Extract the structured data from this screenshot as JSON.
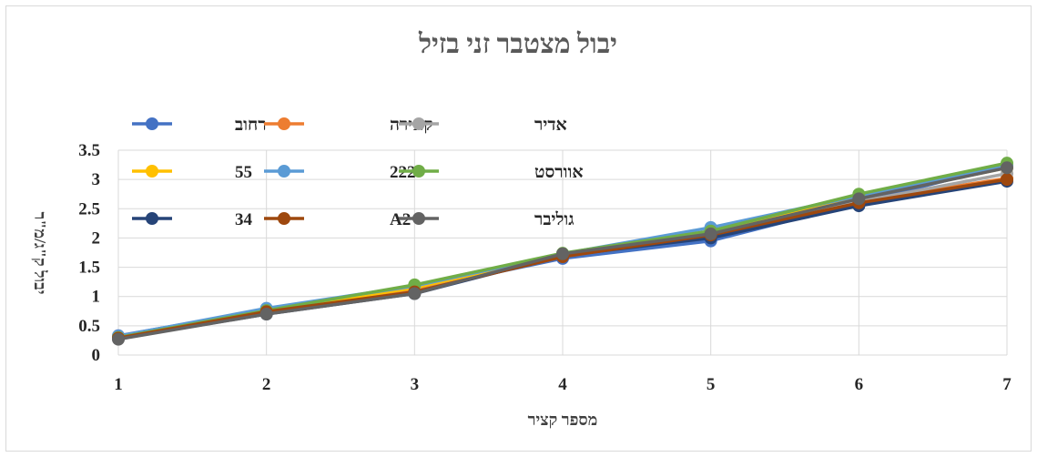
{
  "chart_data": {
    "type": "line",
    "title": "יבול מצטבר זני בזיל",
    "xlabel": "מספר קציר",
    "ylabel": "יבול ק\"ג/מ\"ר",
    "x": [
      1,
      2,
      3,
      4,
      5,
      6,
      7
    ],
    "xlim": [
      1,
      7
    ],
    "ylim": [
      0,
      3.5
    ],
    "yticks": [
      0,
      0.5,
      1,
      1.5,
      2,
      2.5,
      3,
      3.5
    ],
    "ytick_labels": [
      "0",
      "0.5",
      "1",
      "1.5",
      "2",
      "2.5",
      "3",
      "3.5"
    ],
    "xtick_labels": [
      "1",
      "2",
      "3",
      "4",
      "5",
      "6",
      "7"
    ],
    "grid": true,
    "legend_position": "top-left, inside plot",
    "series": [
      {
        "name": "רחוב",
        "color": "#4472C4",
        "values": [
          0.33,
          0.78,
          1.12,
          1.65,
          1.95,
          2.6,
          3.25
        ]
      },
      {
        "name": "קאירה",
        "color": "#ED7D31",
        "values": [
          0.3,
          0.74,
          1.1,
          1.7,
          2.05,
          2.63,
          3.02
        ]
      },
      {
        "name": "אדיר",
        "color": "#A5A5A5",
        "values": [
          0.29,
          0.73,
          1.08,
          1.7,
          2.03,
          2.62,
          3.1
        ]
      },
      {
        "name": "55",
        "color": "#FFC000",
        "values": [
          0.31,
          0.76,
          1.15,
          1.72,
          2.1,
          2.68,
          3.2
        ]
      },
      {
        "name": "222",
        "color": "#5B9BD5",
        "values": [
          0.32,
          0.8,
          1.18,
          1.73,
          2.18,
          2.72,
          3.25
        ]
      },
      {
        "name": "אוורסט",
        "color": "#70AD47",
        "values": [
          0.3,
          0.76,
          1.2,
          1.74,
          2.12,
          2.75,
          3.28
        ]
      },
      {
        "name": "34",
        "color": "#264478",
        "values": [
          0.28,
          0.7,
          1.05,
          1.7,
          2.0,
          2.55,
          2.97
        ]
      },
      {
        "name": "A2",
        "color": "#9E480E",
        "values": [
          0.29,
          0.74,
          1.08,
          1.68,
          2.05,
          2.6,
          3.0
        ]
      },
      {
        "name": "גוליבר",
        "color": "#636363",
        "values": [
          0.27,
          0.7,
          1.05,
          1.73,
          2.07,
          2.67,
          3.2
        ]
      }
    ]
  }
}
